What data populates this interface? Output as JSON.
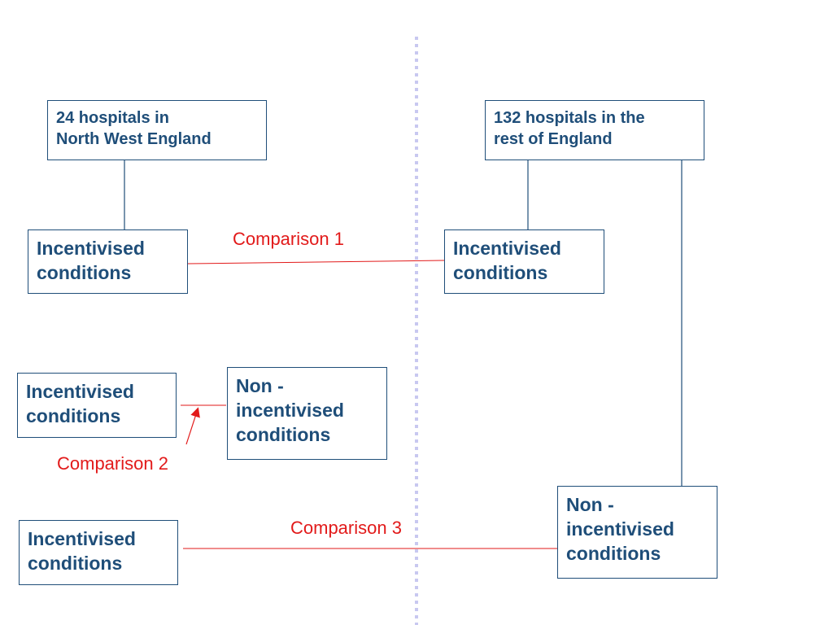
{
  "colors": {
    "box_border": "#1f4e79",
    "box_text": "#1f4e79",
    "comparison": "#e21a1a",
    "divider": "#c8c8f0"
  },
  "nodes": {
    "nw_hospitals": "24 hospitals in\nNorth West England",
    "rest_hospitals": "132 hospitals in the\nrest of England",
    "nw_incentivised_1": "Incentivised\nconditions",
    "rest_incentivised": "Incentivised\nconditions",
    "nw_incentivised_2": "Incentivised\nconditions",
    "nw_non_incentivised": "Non -\nincentivised\nconditions",
    "nw_incentivised_3": "Incentivised\nconditions",
    "rest_non_incentivised": "Non -\nincentivised\nconditions"
  },
  "comparisons": {
    "c1": "Comparison 1",
    "c2": "Comparison 2",
    "c3": "Comparison 3"
  }
}
